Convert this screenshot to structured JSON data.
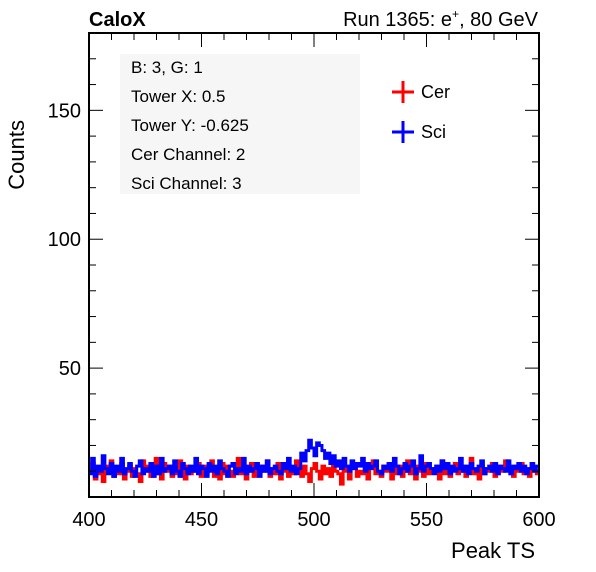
{
  "header": {
    "experiment": "CaloX",
    "run_prefix": "Run 1365: e",
    "run_sup": "+",
    "run_suffix": ", 80 GeV"
  },
  "info_box": {
    "lines": [
      "B: 3, G: 1",
      "Tower X: 0.5",
      "Tower Y: -0.625",
      "Cer Channel: 2",
      "Sci Channel: 3"
    ]
  },
  "legend": {
    "position": "top-right",
    "entries": [
      {
        "label": "Cer",
        "color": "#ff0000"
      },
      {
        "label": "Sci",
        "color": "#0000ff"
      }
    ]
  },
  "chart_data": {
    "type": "line",
    "title": "",
    "xlabel": "Peak TS",
    "ylabel": "Counts",
    "xlim": [
      400,
      600
    ],
    "ylim": [
      0,
      180
    ],
    "x_ticks": [
      400,
      450,
      500,
      550,
      600
    ],
    "y_ticks": [
      50,
      100,
      150
    ],
    "grid": false,
    "series": [
      {
        "name": "Cer",
        "color": "#ff0000",
        "x_start": 400,
        "x_end": 600,
        "values": [
          10,
          13,
          7,
          11,
          9,
          6,
          12,
          10,
          14,
          8,
          11,
          9,
          13,
          7,
          10,
          12,
          8,
          11,
          9,
          6,
          14,
          10,
          12,
          8,
          11,
          15,
          9,
          7,
          13,
          10,
          12,
          8,
          11,
          9,
          14,
          10,
          7,
          12,
          9,
          11,
          10,
          13,
          8,
          12,
          9,
          11,
          14,
          8,
          10,
          7,
          13,
          9,
          12,
          10,
          8,
          11,
          15,
          9,
          12,
          7,
          10,
          13,
          8,
          11,
          9,
          12,
          10,
          14,
          8,
          11,
          9,
          13,
          7,
          10,
          12,
          8,
          11,
          9,
          14,
          10,
          8,
          12,
          9,
          6,
          11,
          13,
          10,
          7,
          12,
          9,
          11,
          8,
          14,
          10,
          9,
          5,
          12,
          10,
          7,
          11,
          13,
          8,
          10,
          9,
          12,
          7,
          11,
          14,
          9,
          10,
          8,
          12,
          10,
          13,
          7,
          11,
          9,
          12,
          8,
          10,
          14,
          9,
          11,
          7,
          12,
          10,
          8,
          13,
          9,
          11,
          10,
          12,
          7,
          14,
          9,
          10,
          8,
          11,
          13,
          9,
          10,
          12,
          8,
          11,
          15,
          9,
          10,
          7,
          12,
          9,
          11,
          10,
          13,
          8,
          9,
          12,
          10,
          14,
          11,
          9,
          8,
          12,
          10,
          13,
          9,
          11,
          8,
          12,
          10,
          9
        ]
      },
      {
        "name": "Sci",
        "color": "#0000ff",
        "x_start": 400,
        "x_end": 600,
        "values": [
          9,
          15,
          8,
          12,
          10,
          16,
          11,
          9,
          13,
          8,
          12,
          10,
          15,
          9,
          11,
          13,
          10,
          8,
          12,
          14,
          9,
          11,
          10,
          13,
          8,
          12,
          9,
          15,
          10,
          11,
          12,
          9,
          14,
          10,
          8,
          13,
          11,
          9,
          12,
          10,
          15,
          9,
          12,
          11,
          8,
          13,
          10,
          12,
          9,
          14,
          11,
          10,
          8,
          12,
          13,
          9,
          11,
          10,
          15,
          9,
          12,
          10,
          11,
          13,
          8,
          12,
          10,
          14,
          9,
          11,
          12,
          10,
          9,
          13,
          11,
          15,
          10,
          12,
          9,
          11,
          17,
          14,
          18,
          22,
          19,
          16,
          21,
          20,
          18,
          15,
          17,
          13,
          16,
          12,
          14,
          11,
          15,
          12,
          10,
          14,
          11,
          13,
          12,
          15,
          10,
          13,
          11,
          12,
          14,
          10,
          9,
          12,
          11,
          13,
          10,
          15,
          12,
          9,
          11,
          13,
          10,
          12,
          14,
          9,
          11,
          16,
          10,
          12,
          13,
          11,
          9,
          12,
          10,
          14,
          11,
          13,
          9,
          12,
          10,
          11,
          15,
          10,
          12,
          9,
          13,
          11,
          10,
          12,
          14,
          9,
          11,
          12,
          10,
          13,
          9,
          12,
          11,
          10,
          14,
          9,
          12,
          11,
          13,
          10,
          12,
          9,
          11,
          13,
          10,
          12
        ]
      }
    ]
  }
}
